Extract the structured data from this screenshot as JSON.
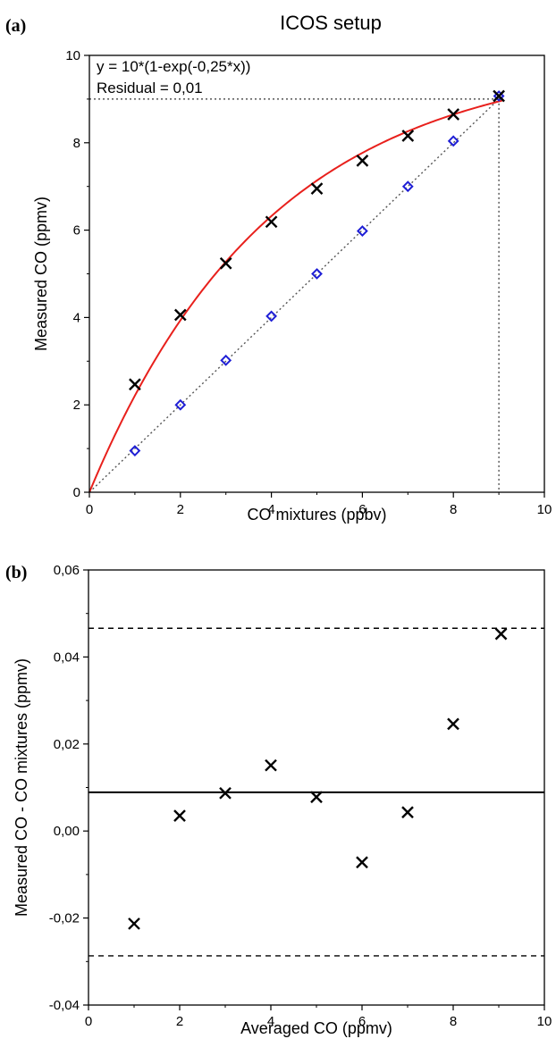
{
  "chart_data": [
    {
      "panel_label": "(a)",
      "type": "scatter",
      "title": "ICOS setup",
      "xlabel": "CO mixtures (ppbv)",
      "ylabel": "Measured CO (ppmv)",
      "xlim": [
        0,
        10
      ],
      "ylim": [
        0,
        10
      ],
      "xticks": [
        0,
        2,
        4,
        6,
        8,
        10
      ],
      "yticks": [
        0,
        2,
        4,
        6,
        8,
        10
      ],
      "grid": false,
      "annotations": [
        "y = 10*(1-exp(-0,25*x))",
        "Residual = 0,01"
      ],
      "series": [
        {
          "marker": "x",
          "color": "#000000",
          "x": [
            1,
            2,
            3,
            4,
            5,
            6,
            7,
            8,
            9
          ],
          "y": [
            2.47,
            4.06,
            5.24,
            6.19,
            6.95,
            7.59,
            8.16,
            8.65,
            9.07
          ]
        },
        {
          "marker": "diamond",
          "color": "#1f1fd6",
          "x": [
            1,
            2,
            3,
            4,
            5,
            6,
            7,
            8,
            9
          ],
          "y": [
            0.95,
            2.0,
            3.02,
            4.03,
            5.0,
            5.98,
            7.0,
            8.04,
            9.07
          ]
        }
      ],
      "fit_curve": {
        "formula": "y = 10*(1-exp(-0.25*x))",
        "color": "#e8201c"
      },
      "identity_line": {
        "from": [
          0,
          0
        ],
        "to": [
          9.07,
          9.07
        ],
        "style": "dotted",
        "color": "#555555"
      },
      "reference_lines": {
        "x": 9,
        "y": 9,
        "style": "dotted"
      }
    },
    {
      "panel_label": "(b)",
      "type": "scatter",
      "xlabel": "Averaged CO (ppmv)",
      "ylabel": "Measured CO - CO mixtures (ppmv)",
      "xlim": [
        0,
        10
      ],
      "ylim": [
        -0.04,
        0.06
      ],
      "xticks": [
        0,
        2,
        4,
        6,
        8,
        10
      ],
      "yticks": [
        "-0,04",
        "-0,02",
        "0,00",
        "0,02",
        "0,04",
        "0,06"
      ],
      "ytick_values": [
        -0.04,
        -0.02,
        0.0,
        0.02,
        0.04,
        0.06
      ],
      "grid": false,
      "series": [
        {
          "marker": "x",
          "color": "#000000",
          "x": [
            1,
            2,
            3,
            4,
            5,
            6,
            7,
            8,
            9.05
          ],
          "y": [
            -0.0213,
            0.0035,
            0.0087,
            0.0151,
            0.0078,
            -0.0072,
            0.0043,
            0.0246,
            0.0453
          ]
        }
      ],
      "mean_line": {
        "y": 0.0089,
        "style": "solid",
        "color": "#000000"
      },
      "limit_lines": {
        "y": [
          0.0466,
          -0.0287
        ],
        "style": "dashed",
        "color": "#000000"
      }
    }
  ]
}
